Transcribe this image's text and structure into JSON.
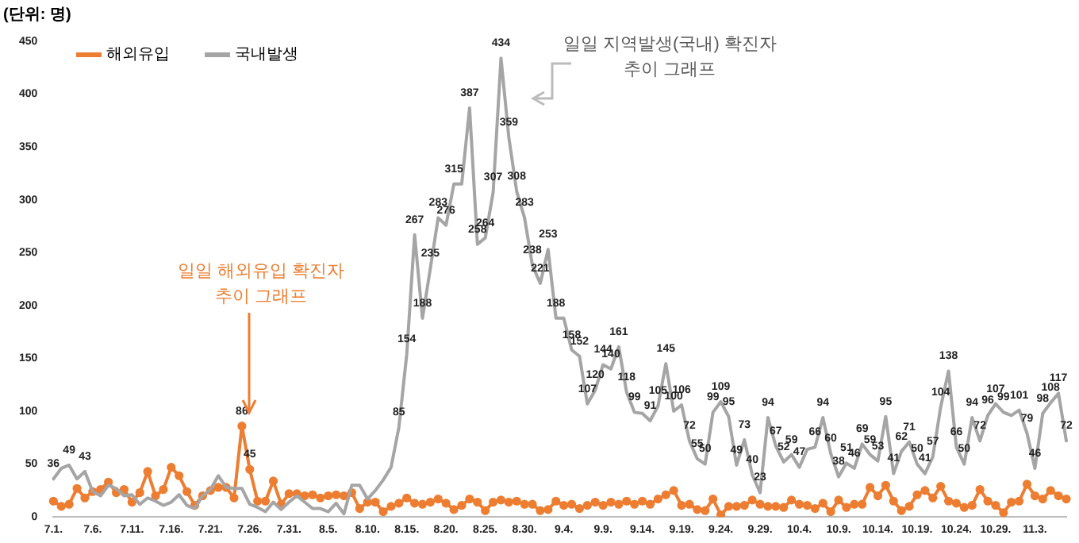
{
  "chart_data": {
    "type": "line",
    "ylabel": "(단위: 명)",
    "annotations": [
      "일일 해외유입 확진자\n추이 그래프",
      "일일 지역발생(국내) 확진자\n추이 그래프"
    ],
    "categories": [
      "7.1.",
      null,
      null,
      null,
      null,
      "7.6.",
      null,
      null,
      null,
      null,
      "7.11.",
      null,
      null,
      null,
      null,
      "7.16.",
      null,
      null,
      null,
      null,
      "7.21.",
      null,
      null,
      null,
      null,
      "7.26.",
      null,
      null,
      null,
      null,
      "7.31.",
      null,
      null,
      null,
      null,
      "8.5.",
      null,
      null,
      null,
      null,
      "8.10.",
      null,
      null,
      null,
      null,
      "8.15.",
      null,
      null,
      null,
      null,
      "8.20.",
      null,
      null,
      null,
      null,
      "8.25.",
      null,
      null,
      null,
      null,
      "8.30.",
      null,
      null,
      null,
      null,
      "9.4.",
      null,
      null,
      null,
      null,
      "9.9.",
      null,
      null,
      null,
      null,
      "9.14.",
      null,
      null,
      null,
      null,
      "9.19.",
      null,
      null,
      null,
      null,
      "9.24.",
      null,
      null,
      null,
      null,
      "9.29.",
      null,
      null,
      null,
      null,
      "10.4.",
      null,
      null,
      null,
      null,
      "10.9.",
      null,
      null,
      null,
      null,
      "10.14.",
      null,
      null,
      null,
      null,
      "10.19.",
      null,
      null,
      null,
      null,
      "10.24.",
      null,
      null,
      null,
      null,
      "10.29.",
      null,
      null,
      null,
      null,
      "11.3.",
      null,
      null,
      null,
      null
    ],
    "series": [
      {
        "name": "해외유입",
        "color": "#ed7d31",
        "marker": "circle",
        "value_labels": [
          null,
          null,
          null,
          null,
          null,
          null,
          null,
          null,
          null,
          null,
          null,
          null,
          null,
          null,
          null,
          null,
          null,
          null,
          null,
          null,
          null,
          null,
          null,
          null,
          "86",
          "45",
          null,
          null,
          null,
          null,
          null,
          null,
          null,
          null,
          null,
          null,
          null,
          null,
          null,
          null,
          null,
          null,
          null,
          null,
          null,
          null,
          null,
          null,
          null,
          null,
          null,
          null,
          null,
          null,
          null,
          null,
          null,
          null,
          null,
          null,
          null,
          null,
          null,
          null,
          null,
          null,
          null,
          null,
          null,
          null,
          null,
          null,
          null,
          null,
          null,
          null,
          null,
          null,
          null,
          null,
          null,
          null,
          null,
          null,
          null,
          null,
          null,
          null,
          null,
          null,
          null,
          null,
          null,
          null,
          null,
          null,
          null,
          null,
          null,
          null,
          null,
          null,
          null,
          null,
          null,
          null,
          null,
          null,
          null,
          null,
          null,
          null,
          null,
          null,
          null,
          null,
          null,
          null,
          null,
          null,
          null,
          null,
          null,
          null,
          null,
          null,
          null,
          null,
          null,
          null
        ],
        "values": [
          15,
          10,
          12,
          27,
          18,
          24,
          26,
          33,
          23,
          26,
          14,
          23,
          43,
          20,
          26,
          47,
          39,
          24,
          11,
          20,
          25,
          28,
          28,
          18,
          86,
          45,
          15,
          15,
          34,
          12,
          22,
          22,
          20,
          21,
          18,
          20,
          21,
          20,
          23,
          8,
          14,
          14,
          5,
          10,
          13,
          18,
          13,
          12,
          14,
          17,
          13,
          7,
          11,
          17,
          14,
          6,
          14,
          16,
          14,
          15,
          12,
          12,
          6,
          7,
          15,
          11,
          12,
          8,
          11,
          14,
          11,
          14,
          12,
          15,
          12,
          15,
          12,
          17,
          21,
          25,
          11,
          12,
          7,
          6,
          17,
          2,
          10,
          10,
          11,
          16,
          12,
          10,
          10,
          9,
          16,
          12,
          11,
          8,
          13,
          5,
          16,
          9,
          12,
          12,
          28,
          20,
          30,
          15,
          6,
          10,
          21,
          25,
          18,
          29,
          15,
          13,
          9,
          11,
          26,
          15,
          11,
          4,
          14,
          15,
          31,
          20,
          17,
          25,
          20,
          17
        ]
      },
      {
        "name": "국내발생",
        "color": "#a5a5a5",
        "marker": "none",
        "value_labels": [
          "36",
          null,
          "49",
          null,
          "43",
          null,
          null,
          null,
          null,
          null,
          null,
          null,
          null,
          null,
          null,
          null,
          null,
          null,
          null,
          null,
          null,
          null,
          null,
          null,
          null,
          null,
          null,
          null,
          null,
          null,
          null,
          null,
          null,
          null,
          null,
          null,
          null,
          null,
          null,
          null,
          null,
          null,
          null,
          null,
          "85",
          "154",
          "267",
          "188",
          "235",
          "283",
          "276",
          "315",
          null,
          "387",
          "258",
          "264",
          "307",
          "434",
          "359",
          "308",
          "283",
          "238",
          "221",
          "253",
          "188",
          null,
          "158",
          "152",
          "107",
          "120",
          "144",
          "140",
          "161",
          "118",
          "99",
          null,
          "91",
          "105",
          "145",
          "100",
          "106",
          "72",
          "55",
          "50",
          "99",
          "109",
          "95",
          "49",
          "73",
          "40",
          "23",
          "94",
          "67",
          "52",
          "59",
          "47",
          null,
          "66",
          "94",
          "60",
          "38",
          "51",
          "46",
          "69",
          "59",
          "53",
          "95",
          "41",
          "62",
          "71",
          "50",
          "41",
          "57",
          "104",
          "138",
          "66",
          "50",
          "94",
          "72",
          "96",
          "107",
          "99",
          null,
          "101",
          "79",
          "46",
          "98",
          "108",
          "117",
          "72"
        ],
        "values": [
          36,
          46,
          49,
          36,
          43,
          24,
          20,
          30,
          27,
          20,
          21,
          12,
          18,
          15,
          11,
          14,
          21,
          11,
          8,
          20,
          26,
          39,
          28,
          27,
          27,
          12,
          9,
          5,
          14,
          7,
          14,
          20,
          14,
          8,
          8,
          5,
          13,
          3,
          30,
          30,
          17,
          25,
          35,
          47,
          85,
          154,
          267,
          188,
          235,
          283,
          276,
          315,
          315,
          387,
          258,
          264,
          307,
          434,
          359,
          308,
          283,
          238,
          221,
          253,
          188,
          188,
          158,
          152,
          107,
          120,
          144,
          140,
          161,
          118,
          99,
          98,
          91,
          105,
          145,
          100,
          106,
          72,
          55,
          50,
          99,
          109,
          95,
          49,
          73,
          40,
          23,
          94,
          67,
          52,
          59,
          47,
          64,
          66,
          94,
          60,
          38,
          51,
          46,
          69,
          59,
          53,
          95,
          41,
          62,
          71,
          50,
          41,
          57,
          104,
          138,
          66,
          50,
          94,
          72,
          96,
          107,
          99,
          96,
          101,
          79,
          46,
          98,
          108,
          117,
          72
        ]
      }
    ],
    "ylim": [
      0,
      450
    ],
    "yticks": [
      0,
      50,
      100,
      150,
      200,
      250,
      300,
      350,
      400,
      450
    ],
    "grid": false,
    "legend": "top left",
    "line_style": "solid"
  }
}
